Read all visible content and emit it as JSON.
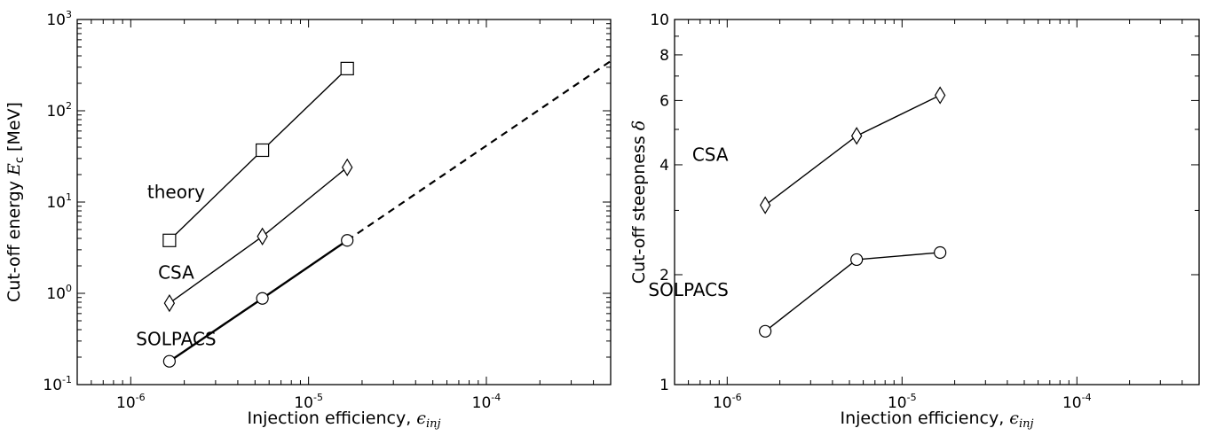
{
  "chart_data": [
    {
      "type": "line",
      "xscale": "log",
      "yscale": "log",
      "xlim": [
        5e-07,
        0.0005
      ],
      "ylim": [
        0.1,
        1000
      ],
      "xlabel": "Injection efficiency, ",
      "xlabel_symbol": "ϵ",
      "xlabel_sub": "inj",
      "ylabel": "Cut-off energy ",
      "ylabel_symbol": "E",
      "ylabel_sub": "c",
      "ylabel_unit": " [MeV]",
      "x_ticks": [
        {
          "value": 1e-06,
          "base": "10",
          "exp": "-6"
        },
        {
          "value": 1e-05,
          "base": "10",
          "exp": "-5"
        },
        {
          "value": 0.0001,
          "base": "10",
          "exp": "-4"
        }
      ],
      "y_ticks": [
        {
          "value": 0.1,
          "base": "10",
          "exp": "-1"
        },
        {
          "value": 1,
          "base": "10",
          "exp": "0"
        },
        {
          "value": 10,
          "base": "10",
          "exp": "1"
        },
        {
          "value": 100,
          "base": "10",
          "exp": "2"
        },
        {
          "value": 1000,
          "base": "10",
          "exp": "3"
        }
      ],
      "series": [
        {
          "label": "theory",
          "marker": "square",
          "x": [
            1.65e-06,
            5.5e-06,
            1.65e-05
          ],
          "y": [
            3.8,
            37,
            290
          ]
        },
        {
          "label": "CSA",
          "marker": "diamond",
          "x": [
            1.65e-06,
            5.5e-06,
            1.65e-05
          ],
          "y": [
            0.78,
            4.2,
            24
          ]
        },
        {
          "label": "SOLPACS",
          "marker": "circle",
          "x": [
            1.65e-06,
            5.5e-06,
            1.65e-05
          ],
          "y": [
            0.18,
            0.88,
            3.8
          ]
        }
      ],
      "extrapolation": {
        "x": [
          1.65e-05,
          0.0005
        ],
        "y": [
          3.8,
          350
        ],
        "style": "dashed"
      },
      "annotations": [
        {
          "text": "theory",
          "x": 1.8e-06,
          "y": 11
        },
        {
          "text": "CSA",
          "x": 1.8e-06,
          "y": 1.45
        },
        {
          "text": "SOLPACS",
          "x": 1.8e-06,
          "y": 0.27
        }
      ]
    },
    {
      "type": "line",
      "xscale": "log",
      "yscale": "log",
      "xlim": [
        5e-07,
        0.0005
      ],
      "ylim": [
        1,
        10
      ],
      "xlabel": "Injection efficiency, ",
      "xlabel_symbol": "ϵ",
      "xlabel_sub": "inj",
      "ylabel": "Cut-off steepness ",
      "ylabel_symbol": "δ",
      "x_ticks": [
        {
          "value": 1e-06,
          "base": "10",
          "exp": "-6"
        },
        {
          "value": 1e-05,
          "base": "10",
          "exp": "-5"
        },
        {
          "value": 0.0001,
          "base": "10",
          "exp": "-4"
        }
      ],
      "y_ticks": [
        {
          "value": 1,
          "text": "1"
        },
        {
          "value": 2,
          "text": "2"
        },
        {
          "value": 4,
          "text": "4"
        },
        {
          "value": 6,
          "text": "6"
        },
        {
          "value": 8,
          "text": "8"
        },
        {
          "value": 10,
          "text": "10"
        }
      ],
      "series": [
        {
          "label": "CSA",
          "marker": "diamond",
          "x": [
            1.65e-06,
            5.5e-06,
            1.65e-05
          ],
          "y": [
            3.1,
            4.8,
            6.2
          ]
        },
        {
          "label": "SOLPACS",
          "marker": "circle",
          "x": [
            1.65e-06,
            5.5e-06,
            1.65e-05
          ],
          "y": [
            1.4,
            2.2,
            2.3
          ]
        }
      ],
      "annotations": [
        {
          "text": "CSA",
          "x": 8e-07,
          "y": 4.1
        },
        {
          "text": "SOLPACS",
          "x": 6e-07,
          "y": 1.75
        }
      ]
    }
  ]
}
